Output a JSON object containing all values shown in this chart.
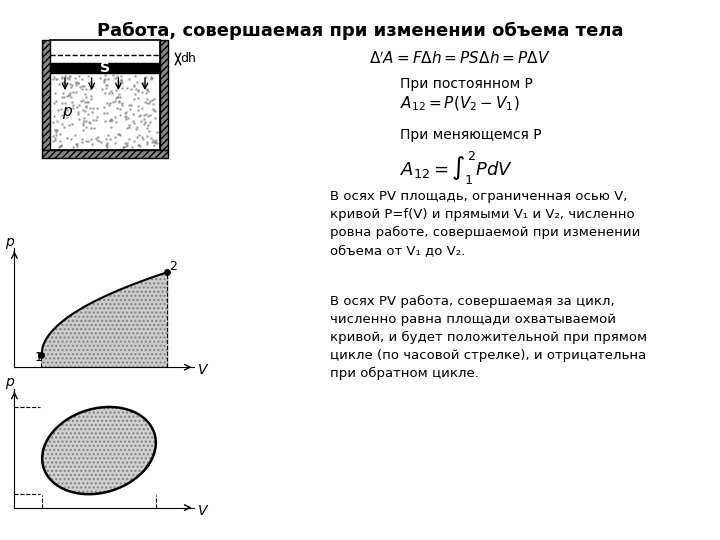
{
  "title": "Работа, совершаемая при изменении объема тела",
  "bg_color": "#ffffff",
  "title_fontsize": 13,
  "formula1": "$\\Delta'A = F\\Delta h = PS\\Delta h = P\\Delta V$",
  "label_const_P": "При постоянном P",
  "formula2": "$A_{12} = P(V_2 - V_1)$",
  "label_var_P": "При меняющемся P",
  "formula3": "$A_{12} = \\int_{1}^{2} PdV$",
  "text1": "В осях PV площадь, ограниченная осью V,\nкривой P=f(V) и прямыми V₁ и V₂, численно\nровна работе, совершаемой при изменении\nобъема от V₁ до V₂.",
  "text2": "В осях PV работа, совершаемая за цикл,\nчисленно равна площади охватываемой\nкривой, и будет положительной при прямом\nцикле (по часовой стрелке), и отрицательна\nпри обратном цикле.",
  "diagram_gray": "#b0b0b0",
  "diagram_fill": "#c8c8c8",
  "diagram_hatch": "...",
  "text_color": "#000000"
}
